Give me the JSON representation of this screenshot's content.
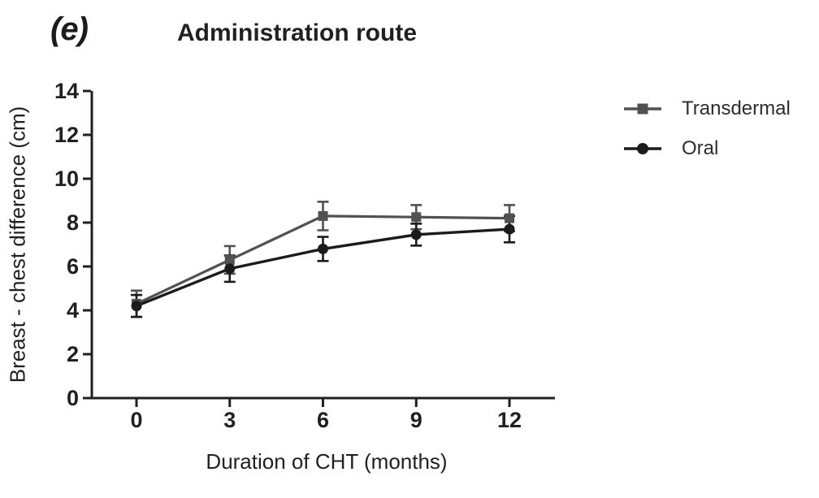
{
  "panel_label": "(e)",
  "colors": {
    "axis": "#231f20",
    "text": "#231f20",
    "transdermal": "#515153",
    "oral": "#1b1b1b",
    "background": "#ffffff"
  },
  "legend": {
    "entries": [
      "Transdermal",
      "Oral"
    ]
  },
  "chart_data": {
    "type": "line",
    "title": "Administration route",
    "xlabel": "Duration of CHT (months)",
    "ylabel": "Breast - chest difference (cm)",
    "x": [
      0,
      3,
      6,
      9,
      12
    ],
    "xticks": [
      "0",
      "3",
      "6",
      "9",
      "12"
    ],
    "yticks": [
      0,
      2,
      4,
      6,
      8,
      10,
      12,
      14
    ],
    "xlim": [
      0,
      12
    ],
    "ylim": [
      0,
      14
    ],
    "grid": false,
    "legend_position": "right",
    "error_bars": true,
    "series": [
      {
        "name": "Transdermal",
        "marker": "square",
        "color": "#515153",
        "values": [
          4.3,
          6.3,
          8.3,
          8.25,
          8.2
        ],
        "errors": [
          0.6,
          0.63,
          0.65,
          0.55,
          0.6
        ]
      },
      {
        "name": "Oral",
        "marker": "circle",
        "color": "#1b1b1b",
        "values": [
          4.2,
          5.9,
          6.8,
          7.45,
          7.7
        ],
        "errors": [
          0.5,
          0.6,
          0.55,
          0.5,
          0.6
        ]
      }
    ]
  }
}
